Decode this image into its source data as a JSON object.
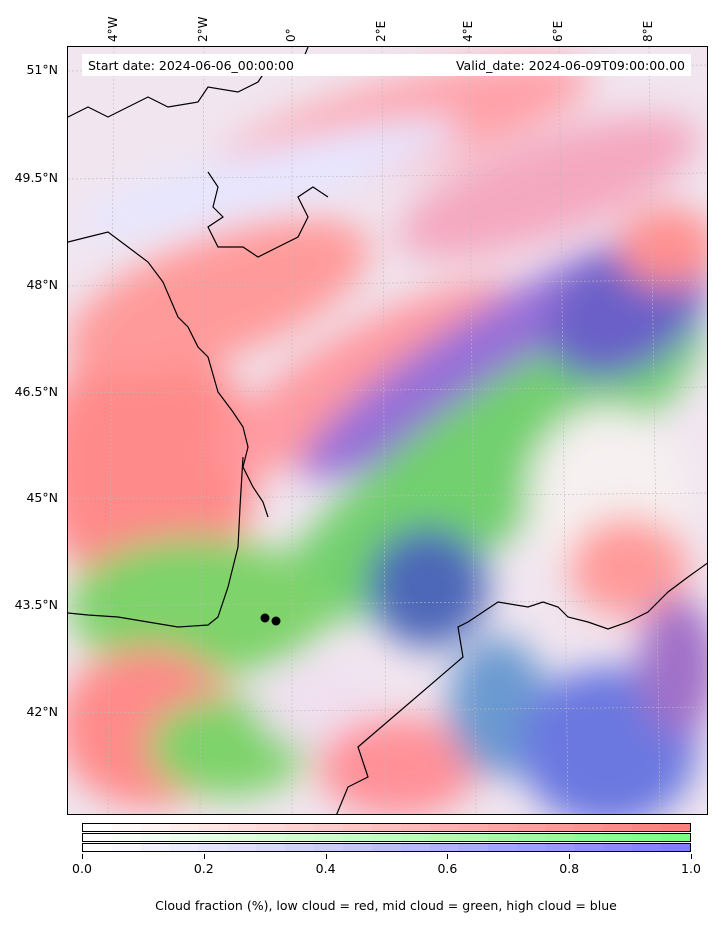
{
  "header": {
    "start_date": "Start date: 2024-06-06_00:00:00",
    "valid_date": "Valid_date: 2024-06-09T09:00:00.00"
  },
  "lon_labels": [
    "4°W",
    "2°W",
    "0°",
    "2°E",
    "4°E",
    "6°E",
    "8°E"
  ],
  "lat_labels": [
    "51°N",
    "49.5°N",
    "48°N",
    "46.5°N",
    "45°N",
    "43.5°N",
    "42°N"
  ],
  "colorbar": {
    "ticks": [
      "0.0",
      "0.2",
      "0.4",
      "0.6",
      "0.8",
      "1.0"
    ],
    "label": "Cloud fraction (%), low cloud = red, mid cloud = green, high cloud = blue",
    "segments": 21,
    "colors": {
      "low": "#ff7f7f",
      "mid": "#7fff7f",
      "high": "#7f7fff"
    }
  },
  "markers": [
    "station-1",
    "station-2"
  ]
}
